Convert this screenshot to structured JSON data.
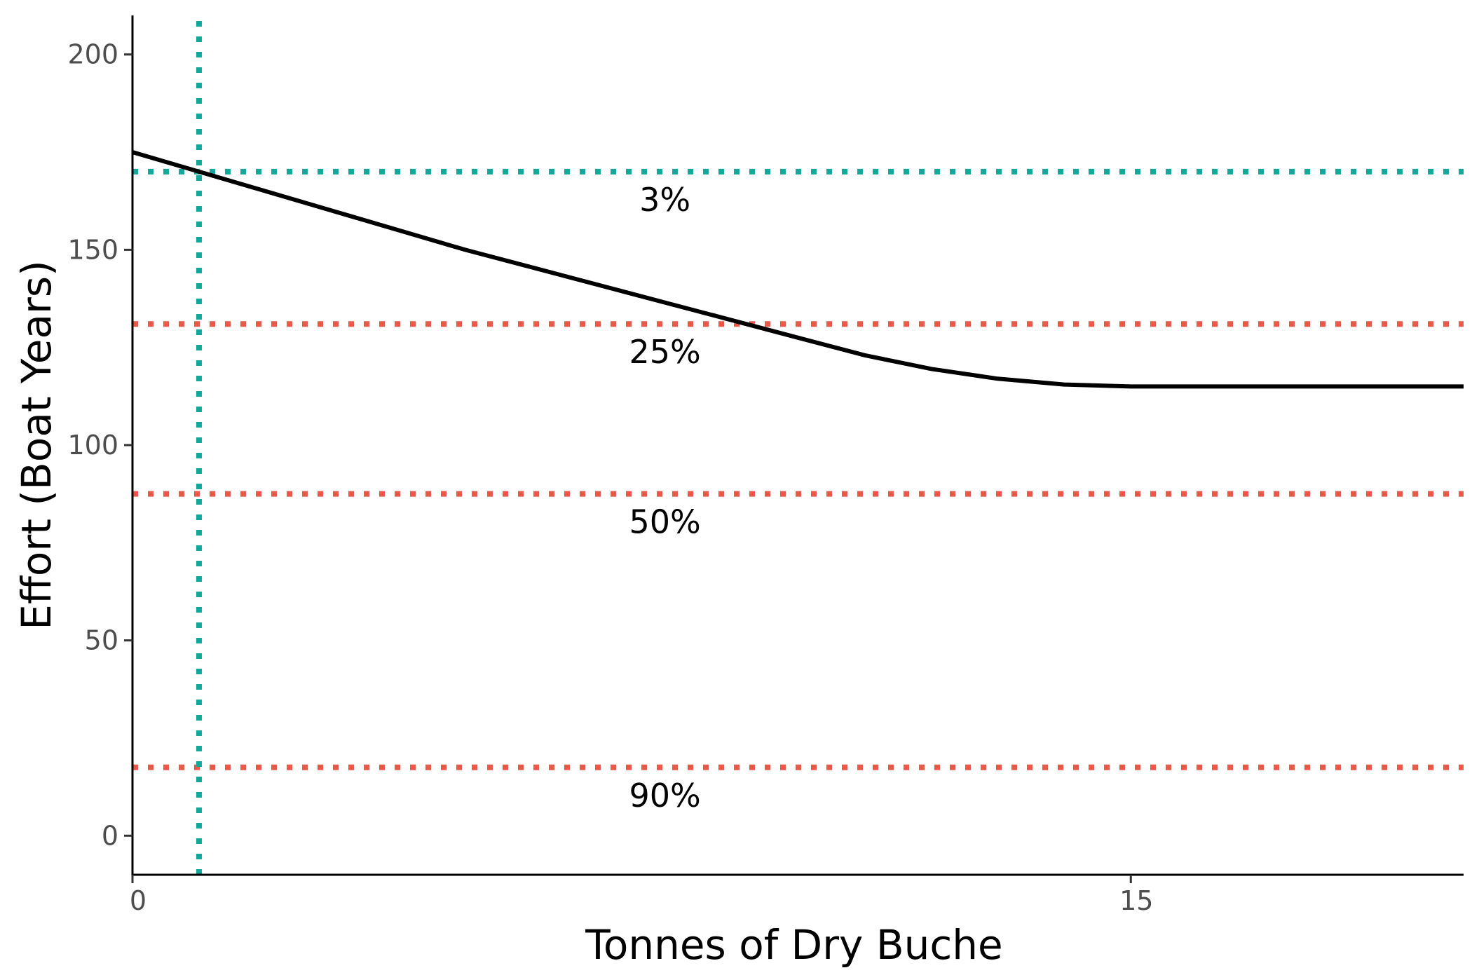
{
  "chart_data": {
    "type": "line",
    "title": "",
    "xlabel": "Tonnes of Dry Buche",
    "ylabel": "Effort (Boat Years)",
    "xlim": [
      0,
      20
    ],
    "ylim": [
      -10,
      210
    ],
    "x_ticks": [
      {
        "value": 0,
        "label": "0"
      },
      {
        "value": 15,
        "label": "15"
      }
    ],
    "y_ticks": [
      {
        "value": 0,
        "label": "0"
      },
      {
        "value": 50,
        "label": "50"
      },
      {
        "value": 100,
        "label": "100"
      },
      {
        "value": 150,
        "label": "150"
      },
      {
        "value": 200,
        "label": "200"
      }
    ],
    "grid": false,
    "series": [
      {
        "color": "#000000",
        "points": [
          [
            0,
            175
          ],
          [
            1,
            170
          ],
          [
            2,
            165
          ],
          [
            3,
            160
          ],
          [
            4,
            155
          ],
          [
            5,
            150
          ],
          [
            6,
            145.5
          ],
          [
            7,
            141
          ],
          [
            8,
            136.5
          ],
          [
            9,
            132
          ],
          [
            10,
            127.5
          ],
          [
            11,
            123
          ],
          [
            12,
            119.5
          ],
          [
            13,
            117
          ],
          [
            14,
            115.5
          ],
          [
            15,
            115
          ],
          [
            20,
            115
          ]
        ]
      }
    ],
    "reference_lines": {
      "horizontal": [
        {
          "y": 170,
          "label": "3%",
          "color": "#14a89b"
        },
        {
          "y": 131,
          "label": "25%",
          "color": "#e8594a"
        },
        {
          "y": 87.5,
          "label": "50%",
          "color": "#e8594a"
        },
        {
          "y": 17.5,
          "label": "90%",
          "color": "#e8594a"
        }
      ],
      "vertical": [
        {
          "x": 1,
          "color": "#14a89b"
        }
      ]
    },
    "label_x": 8
  }
}
